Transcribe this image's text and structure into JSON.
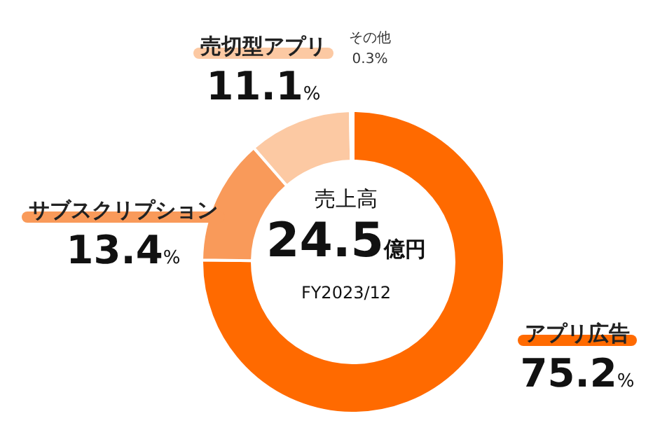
{
  "chart_data": {
    "type": "donut",
    "categories": [
      "アプリ広告",
      "サブスクリプション",
      "売切型アプリ",
      "その他"
    ],
    "values": [
      75.2,
      13.4,
      11.1,
      0.3
    ],
    "colors": [
      "#ff6a00",
      "#f99a5a",
      "#fcc9a3",
      "#fde6d6"
    ],
    "value_labels": [
      "75.2%",
      "13.4%",
      "11.1%",
      "0.3%"
    ],
    "annotations": [
      "売上高",
      "24.5億円",
      "FY2023/12"
    ]
  }
}
